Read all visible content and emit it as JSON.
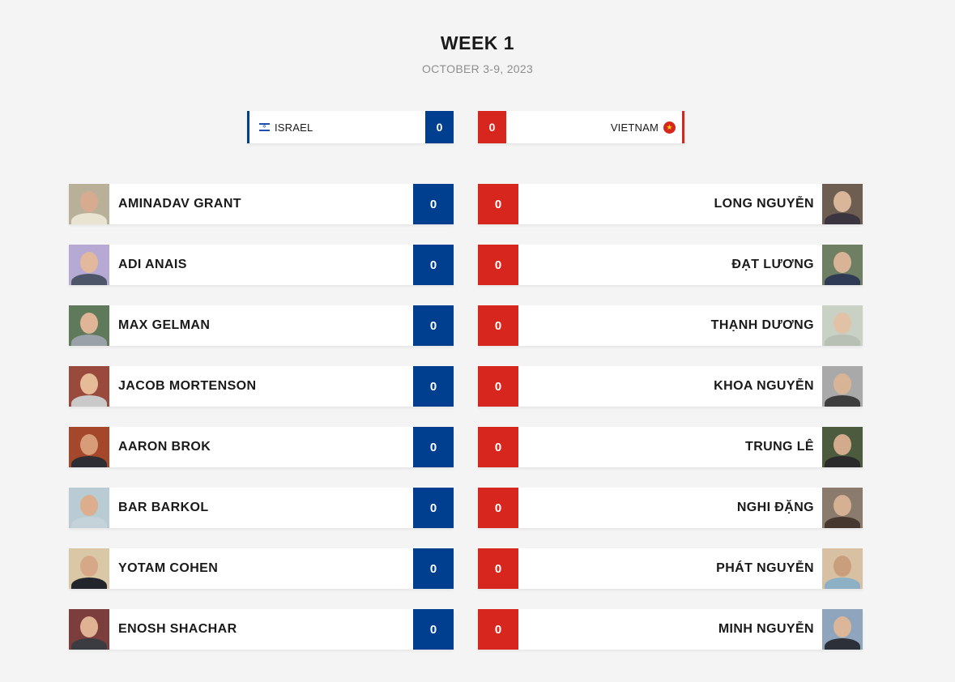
{
  "header": {
    "title": "WEEK 1",
    "dates": "OCTOBER 3-9, 2023"
  },
  "teams": {
    "left": {
      "name": "ISRAEL",
      "score": "0",
      "flag_icon": "israel-flag-icon",
      "color": "#003f8f"
    },
    "right": {
      "name": "VIETNAM",
      "score": "0",
      "flag_icon": "vietnam-flag-icon",
      "color": "#d7261e"
    }
  },
  "matches": [
    {
      "left": {
        "name": "AMINADAV GRANT",
        "score": "0"
      },
      "right": {
        "name": "LONG NGUYỄN",
        "score": "0"
      }
    },
    {
      "left": {
        "name": "ADI ANAIS",
        "score": "0"
      },
      "right": {
        "name": "ĐẠT LƯƠNG",
        "score": "0"
      }
    },
    {
      "left": {
        "name": "MAX GELMAN",
        "score": "0"
      },
      "right": {
        "name": "THẠNH DƯƠNG",
        "score": "0"
      }
    },
    {
      "left": {
        "name": "JACOB MORTENSON",
        "score": "0"
      },
      "right": {
        "name": "KHOA NGUYỄN",
        "score": "0"
      }
    },
    {
      "left": {
        "name": "AARON BROK",
        "score": "0"
      },
      "right": {
        "name": "TRUNG LÊ",
        "score": "0"
      }
    },
    {
      "left": {
        "name": "BAR BARKOL",
        "score": "0"
      },
      "right": {
        "name": "NGHI ĐẶNG",
        "score": "0"
      }
    },
    {
      "left": {
        "name": "YOTAM COHEN",
        "score": "0"
      },
      "right": {
        "name": "PHÁT NGUYỄN",
        "score": "0"
      }
    },
    {
      "left": {
        "name": "ENOSH SHACHAR",
        "score": "0"
      },
      "right": {
        "name": "MINH NGUYỄN",
        "score": "0"
      }
    }
  ]
}
